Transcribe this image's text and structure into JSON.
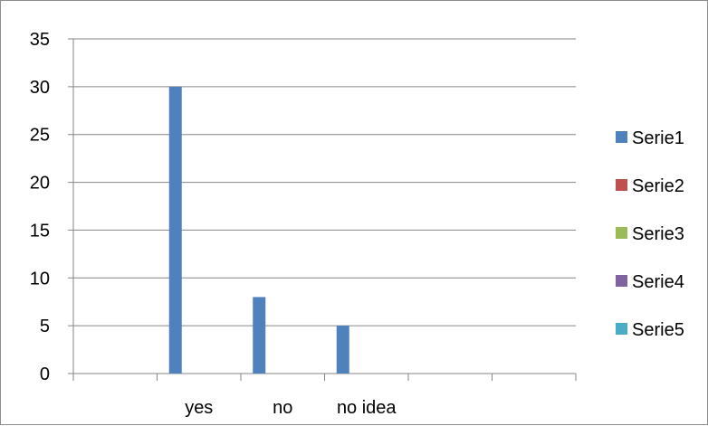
{
  "chart_data": {
    "type": "bar",
    "categories": [
      "",
      "yes",
      "no",
      "no idea",
      "",
      ""
    ],
    "series": [
      {
        "name": "Serie1",
        "color": "#4f81bd",
        "values": [
          0,
          30,
          8,
          5,
          0,
          0
        ]
      },
      {
        "name": "Serie2",
        "color": "#c0504d",
        "values": [
          0,
          0,
          0,
          0,
          0,
          0
        ]
      },
      {
        "name": "Serie3",
        "color": "#9bbb59",
        "values": [
          0,
          0,
          0,
          0,
          0,
          0
        ]
      },
      {
        "name": "Serie4",
        "color": "#8064a2",
        "values": [
          0,
          0,
          0,
          0,
          0,
          0
        ]
      },
      {
        "name": "Serie5",
        "color": "#4bacc6",
        "values": [
          0,
          0,
          0,
          0,
          0,
          0
        ]
      }
    ],
    "y_ticks": [
      "0",
      "5",
      "10",
      "15",
      "20",
      "25",
      "30",
      "35"
    ],
    "ylim": [
      0,
      35
    ],
    "title": "",
    "xlabel": "",
    "ylabel": "",
    "grid": true,
    "legend_position": "right",
    "gridline_color": "#868686"
  }
}
